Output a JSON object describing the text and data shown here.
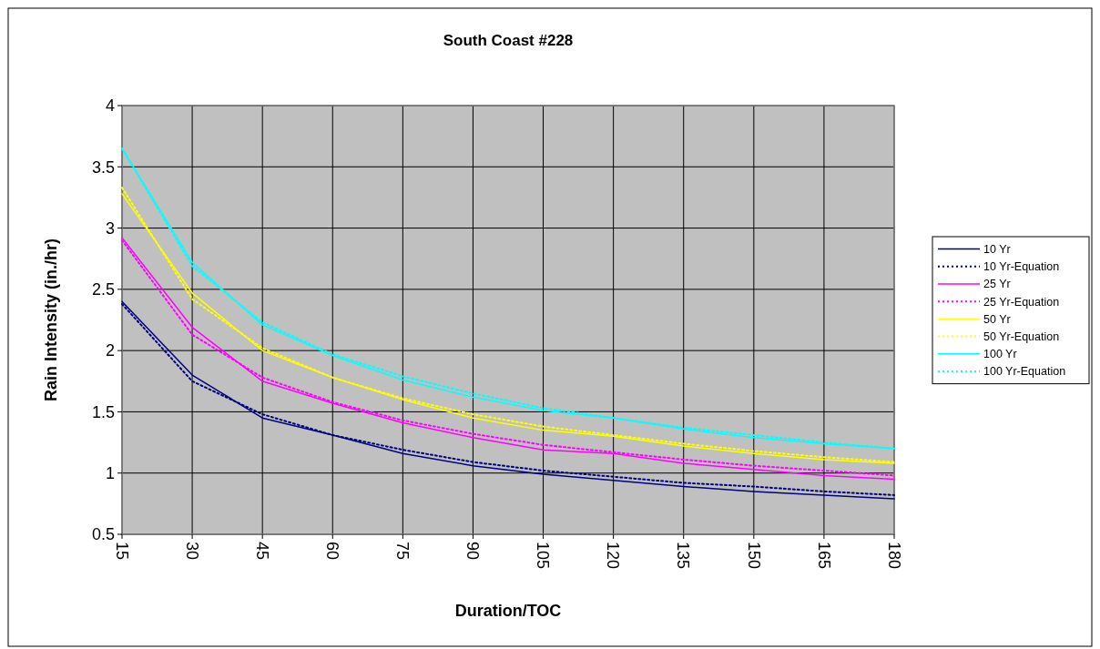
{
  "chart_data": {
    "type": "line",
    "title": "South Coast #228",
    "xlabel": "Duration/TOC",
    "ylabel": "Rain Intensity (in./hr)",
    "x": [
      15,
      30,
      45,
      60,
      75,
      90,
      105,
      120,
      135,
      150,
      165,
      180
    ],
    "xlim": [
      15,
      180
    ],
    "xticks": [
      15,
      30,
      45,
      60,
      75,
      90,
      105,
      120,
      135,
      150,
      165,
      180
    ],
    "ylim": [
      0.5,
      4
    ],
    "yticks": [
      0.5,
      1,
      1.5,
      2,
      2.5,
      3,
      3.5,
      4
    ],
    "grid": true,
    "legend": "right",
    "marker": "none",
    "series": [
      {
        "name": "10 Yr",
        "color": "#000080",
        "line_style": "solid",
        "values": [
          2.4,
          1.8,
          1.45,
          1.31,
          1.16,
          1.06,
          0.99,
          0.94,
          0.89,
          0.85,
          0.82,
          0.79
        ]
      },
      {
        "name": "10 Yr-Equation",
        "color": "#000080",
        "line_style": "dotted",
        "values": [
          2.38,
          1.75,
          1.48,
          1.31,
          1.19,
          1.09,
          1.02,
          0.97,
          0.92,
          0.89,
          0.85,
          0.82
        ]
      },
      {
        "name": "25 Yr",
        "color": "#ff00ff",
        "line_style": "solid",
        "values": [
          2.92,
          2.19,
          1.75,
          1.57,
          1.41,
          1.29,
          1.19,
          1.16,
          1.08,
          1.03,
          0.98,
          0.95
        ]
      },
      {
        "name": "25 Yr-Equation",
        "color": "#ff00ff",
        "line_style": "dotted",
        "values": [
          2.9,
          2.13,
          1.78,
          1.58,
          1.43,
          1.32,
          1.23,
          1.17,
          1.11,
          1.06,
          1.02,
          0.98
        ]
      },
      {
        "name": "50 Yr",
        "color": "#ffff00",
        "line_style": "solid",
        "values": [
          3.28,
          2.47,
          2.0,
          1.78,
          1.6,
          1.45,
          1.35,
          1.3,
          1.22,
          1.16,
          1.11,
          1.08
        ]
      },
      {
        "name": "50 Yr-Equation",
        "color": "#ffff00",
        "line_style": "dotted",
        "values": [
          3.33,
          2.42,
          2.02,
          1.78,
          1.61,
          1.48,
          1.38,
          1.31,
          1.24,
          1.18,
          1.13,
          1.09
        ]
      },
      {
        "name": "100 Yr",
        "color": "#00ffff",
        "line_style": "solid",
        "values": [
          3.65,
          2.72,
          2.21,
          1.96,
          1.76,
          1.62,
          1.51,
          1.45,
          1.36,
          1.29,
          1.24,
          1.2
        ]
      },
      {
        "name": "100 Yr-Equation",
        "color": "#00ffff",
        "line_style": "dotted",
        "values": [
          3.65,
          2.69,
          2.23,
          1.97,
          1.79,
          1.65,
          1.53,
          1.45,
          1.37,
          1.31,
          1.25,
          1.2
        ]
      }
    ]
  }
}
